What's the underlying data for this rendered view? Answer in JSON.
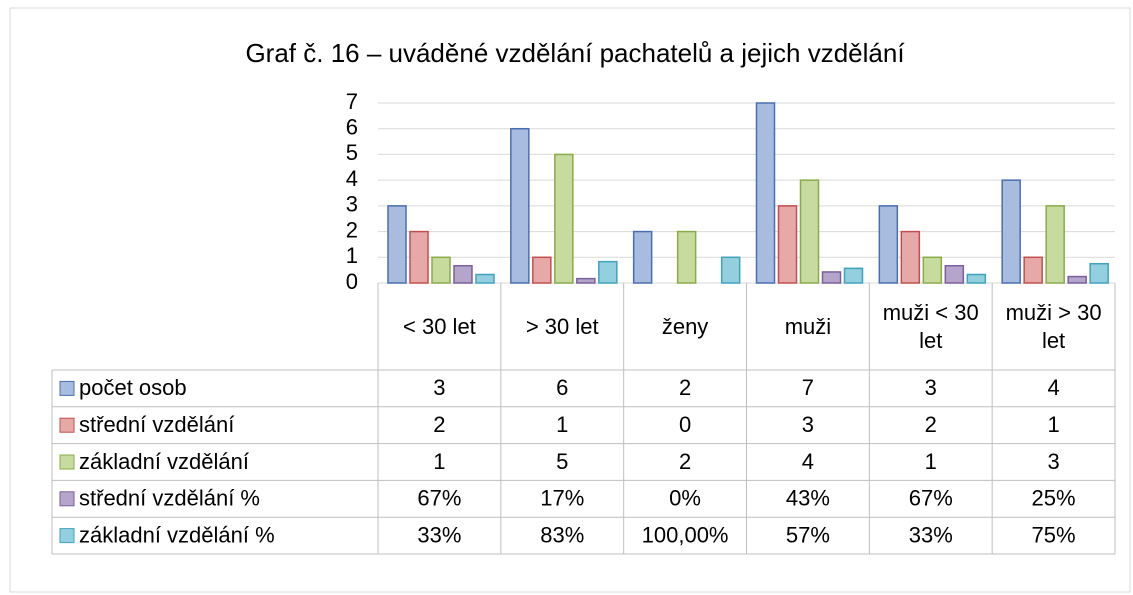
{
  "chart_data": {
    "type": "bar",
    "title": "Graf č. 16 – uváděné vzdělání pachatelů a jejich vzdělání",
    "categories": [
      "< 30 let",
      "> 30 let",
      "ženy",
      "muži",
      "muži < 30 let",
      "muži > 30 let"
    ],
    "series": [
      {
        "name": "počet osob",
        "color": "#a7bcde",
        "values": [
          3,
          6,
          2,
          7,
          3,
          4
        ]
      },
      {
        "name": "střední vzdělání",
        "color": "#e7a9a7",
        "values": [
          2,
          1,
          0,
          3,
          2,
          1
        ]
      },
      {
        "name": "základní vzdělání",
        "color": "#c6db9d",
        "values": [
          1,
          5,
          2,
          4,
          1,
          3
        ]
      },
      {
        "name": "střední vzdělání %",
        "color": "#b6a5cb",
        "values": [
          0.67,
          0.17,
          0,
          0.43,
          0.67,
          0.25
        ],
        "value_labels": [
          "67%",
          "17%",
          "0%",
          "43%",
          "67%",
          "25%"
        ]
      },
      {
        "name": "základní vzdělání %",
        "color": "#93cfdf",
        "values": [
          0.33,
          0.83,
          1,
          0.57,
          0.33,
          0.75
        ],
        "value_labels": [
          "33%",
          "83%",
          "100,00%",
          "57%",
          "33%",
          "75%"
        ]
      }
    ],
    "ylim": [
      0,
      7
    ],
    "yticks": [
      0,
      1,
      2,
      3,
      4,
      5,
      6,
      7
    ],
    "grid": true
  }
}
